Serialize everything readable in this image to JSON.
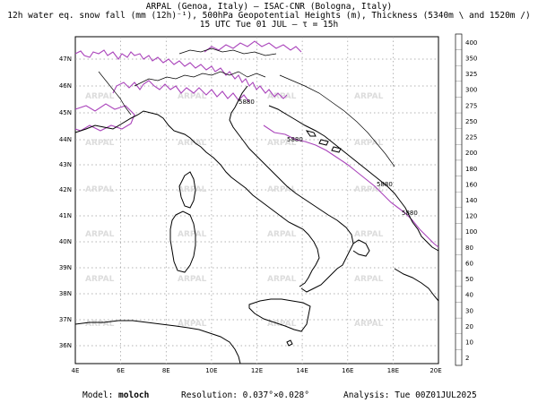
{
  "title": {
    "line1": "ARPAL (Genoa, Italy)  –  ISAC-CNR (Bologna, Italy)",
    "line2": "12h water eq. snow fall (mm (12h)⁻¹), 500hPa Geopotential Heights (m), Thickness (5340m \\ and 1520m /)",
    "line3": "15 UTC Tue 01 JUL  –  τ = 15h"
  },
  "map": {
    "lon_labels": [
      "4E",
      "6E",
      "8E",
      "10E",
      "12E",
      "14E",
      "16E",
      "18E",
      "20E"
    ],
    "lat_labels": [
      "47N",
      "46N",
      "45N",
      "44N",
      "43N",
      "42N",
      "41N",
      "40N",
      "39N",
      "38N",
      "37N",
      "36N"
    ],
    "watermark": "ARPAL",
    "contour_labels": [
      "5880",
      "5880",
      "5880",
      "5880"
    ],
    "colors": {
      "geopotential": "#aa44bb",
      "coast": "#000000",
      "grid": "#999999"
    }
  },
  "colorbar": {
    "levels": [
      "400",
      "350",
      "325",
      "300",
      "275",
      "250",
      "225",
      "200",
      "180",
      "160",
      "140",
      "120",
      "100",
      "80",
      "60",
      "50",
      "40",
      "30",
      "20",
      "10",
      "2"
    ],
    "colors": [
      "#ffffff",
      "#ffffff",
      "#ffffff",
      "#ffffff",
      "#ffffff",
      "#ffffff",
      "#ffffff",
      "#ffffff",
      "#ffffff",
      "#ffffff",
      "#ffffff",
      "#ffffff",
      "#ffffff",
      "#ffffff",
      "#ffffff",
      "#ffffff",
      "#ffffff",
      "#ffffff",
      "#ffffff",
      "#ffffff",
      "#ffffff"
    ],
    "note": ""
  },
  "footer": {
    "model_label": "Model: ",
    "model_value": "moloch",
    "resolution_label": "Resolution: ",
    "resolution_value": "0.037°×0.028°",
    "analysis_label": "Analysis: ",
    "analysis_value": "Tue 00Z01JUL2025"
  }
}
